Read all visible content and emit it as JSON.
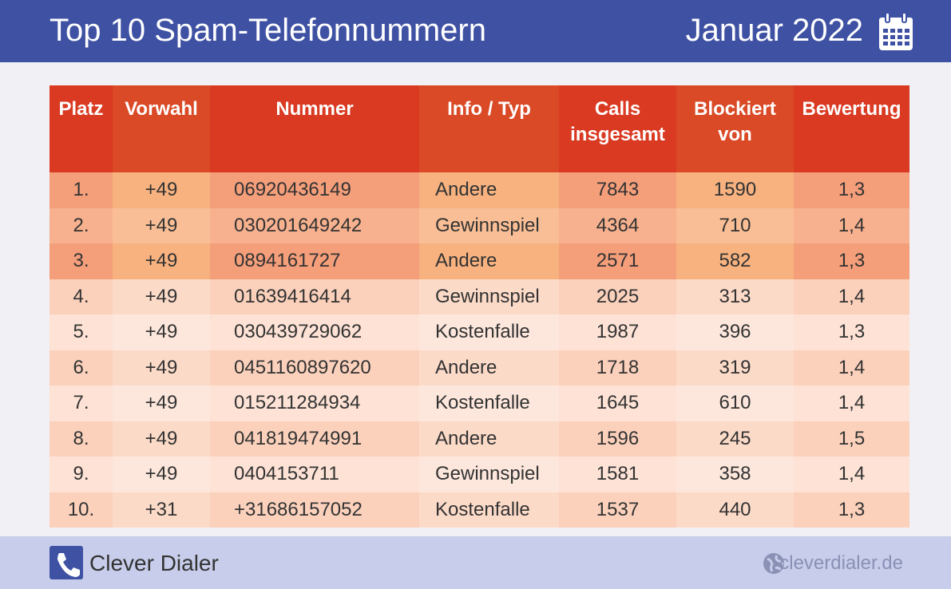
{
  "header": {
    "title": "Top 10 Spam-Telefonnummern",
    "date": "Januar 2022"
  },
  "table": {
    "columns": [
      [
        "Platz"
      ],
      [
        "Vorwahl"
      ],
      [
        "Nummer"
      ],
      [
        "Info / Typ"
      ],
      [
        "Calls",
        "insgesamt"
      ],
      [
        "Blockiert",
        "von"
      ],
      [
        "Bewertung"
      ]
    ],
    "rows": [
      [
        "1.",
        "+49",
        "06920436149",
        "Andere",
        "7843",
        "1590",
        "1,3"
      ],
      [
        "2.",
        "+49",
        "030201649242",
        "Gewinnspiel",
        "4364",
        "710",
        "1,4"
      ],
      [
        "3.",
        "+49",
        "0894161727",
        "Andere",
        "2571",
        "582",
        "1,3"
      ],
      [
        "4.",
        "+49",
        "01639416414",
        "Gewinnspiel",
        "2025",
        "313",
        "1,4"
      ],
      [
        "5.",
        "+49",
        "030439729062",
        "Kostenfalle",
        "1987",
        "396",
        "1,3"
      ],
      [
        "6.",
        "+49",
        "0451160897620",
        "Andere",
        "1718",
        "319",
        "1,4"
      ],
      [
        "7.",
        "+49",
        "015211284934",
        "Kostenfalle",
        "1645",
        "610",
        "1,4"
      ],
      [
        "8.",
        "+49",
        "041819474991",
        "Andere",
        "1596",
        "245",
        "1,5"
      ],
      [
        "9.",
        "+49",
        "0404153711",
        "Gewinnspiel",
        "1581",
        "358",
        "1,4"
      ],
      [
        "10.",
        "+31",
        "+31686157052",
        "Kostenfalle",
        "1537",
        "440",
        "1,3"
      ]
    ]
  },
  "footer": {
    "brand": "Clever Dialer",
    "website": "cleverdialer.de"
  }
}
